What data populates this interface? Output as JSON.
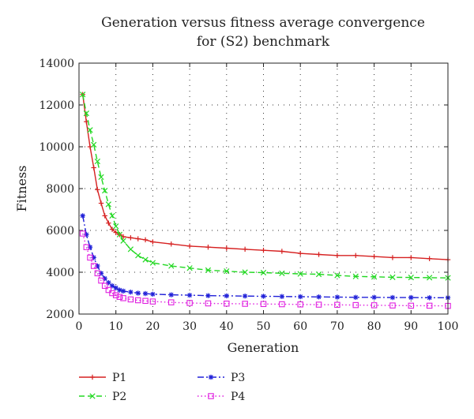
{
  "chart_data": {
    "type": "line",
    "title_lines": [
      "Generation versus fitness average convergence",
      "for (S2) benchmark"
    ],
    "xlabel": "Generation",
    "ylabel": "Fitness",
    "xlim": [
      0,
      100
    ],
    "ylim": [
      2000,
      14000
    ],
    "xticks": [
      0,
      10,
      20,
      30,
      40,
      50,
      60,
      70,
      80,
      90,
      100
    ],
    "yticks": [
      2000,
      4000,
      6000,
      8000,
      10000,
      12000,
      14000
    ],
    "grid": true,
    "legend_position": "bottom-left (below plot)",
    "series": [
      {
        "name": "P1",
        "color": "#d62020",
        "dash": "solid",
        "marker": "plus",
        "x": [
          1,
          2,
          3,
          4,
          5,
          6,
          7,
          8,
          9,
          10,
          11,
          12,
          14,
          16,
          18,
          20,
          25,
          30,
          35,
          40,
          45,
          50,
          55,
          60,
          65,
          70,
          75,
          80,
          85,
          90,
          95,
          100
        ],
        "y": [
          12500,
          11200,
          10000,
          9000,
          7950,
          7300,
          6700,
          6350,
          6050,
          5900,
          5800,
          5700,
          5650,
          5600,
          5550,
          5450,
          5350,
          5250,
          5200,
          5150,
          5100,
          5050,
          5000,
          4900,
          4850,
          4800,
          4800,
          4750,
          4700,
          4700,
          4650,
          4600
        ]
      },
      {
        "name": "P2",
        "color": "#22d822",
        "dash": "dashed",
        "marker": "cross",
        "x": [
          1,
          2,
          3,
          4,
          5,
          6,
          7,
          8,
          9,
          10,
          11,
          12,
          14,
          16,
          18,
          20,
          25,
          30,
          35,
          40,
          45,
          50,
          55,
          60,
          65,
          70,
          75,
          80,
          85,
          90,
          95,
          100
        ],
        "y": [
          12500,
          11600,
          10800,
          10100,
          9300,
          8550,
          7900,
          7250,
          6700,
          6200,
          5800,
          5500,
          5100,
          4800,
          4600,
          4450,
          4300,
          4200,
          4100,
          4050,
          4000,
          3980,
          3950,
          3920,
          3900,
          3850,
          3800,
          3780,
          3760,
          3750,
          3740,
          3730
        ]
      },
      {
        "name": "P3",
        "color": "#2020d8",
        "dash": "dashdot",
        "marker": "star",
        "x": [
          1,
          2,
          3,
          4,
          5,
          6,
          7,
          8,
          9,
          10,
          11,
          12,
          14,
          16,
          18,
          20,
          25,
          30,
          35,
          40,
          45,
          50,
          55,
          60,
          65,
          70,
          75,
          80,
          85,
          90,
          95,
          100
        ],
        "y": [
          6700,
          5800,
          5200,
          4700,
          4300,
          3950,
          3700,
          3500,
          3350,
          3250,
          3150,
          3100,
          3050,
          3000,
          2980,
          2950,
          2920,
          2900,
          2880,
          2870,
          2860,
          2850,
          2840,
          2830,
          2820,
          2810,
          2800,
          2800,
          2790,
          2790,
          2780,
          2780
        ]
      },
      {
        "name": "P4",
        "color": "#e020e0",
        "dash": "dotted",
        "marker": "square",
        "x": [
          1,
          2,
          3,
          4,
          5,
          6,
          7,
          8,
          9,
          10,
          11,
          12,
          14,
          16,
          18,
          20,
          25,
          30,
          35,
          40,
          45,
          50,
          55,
          60,
          65,
          70,
          75,
          80,
          85,
          90,
          95,
          100
        ],
        "y": [
          5850,
          5200,
          4700,
          4300,
          3950,
          3600,
          3350,
          3150,
          3000,
          2900,
          2820,
          2760,
          2700,
          2660,
          2630,
          2600,
          2560,
          2530,
          2510,
          2500,
          2490,
          2480,
          2470,
          2460,
          2450,
          2440,
          2430,
          2420,
          2410,
          2400,
          2400,
          2390
        ]
      }
    ]
  }
}
